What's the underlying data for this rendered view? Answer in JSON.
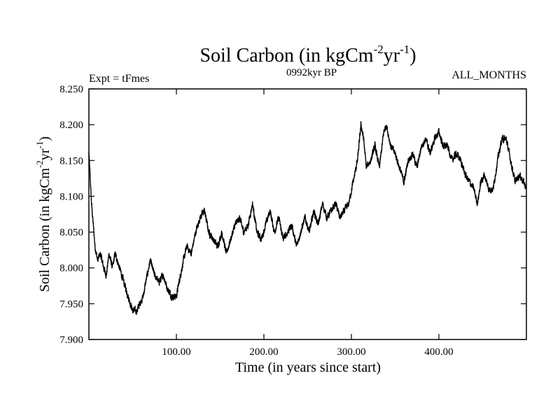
{
  "chart_data": {
    "type": "line",
    "title_main": "Soil Carbon (in kgCm",
    "title_sup1": "-2",
    "title_mid": "yr",
    "title_sup2": "-1",
    "title_end": ")",
    "subtitle_left": "Expt = tFmes",
    "subtitle_center": "0992kyr BP",
    "subtitle_right": "ALL_MONTHS",
    "xlabel": "Time (in years since start)",
    "ylabel_main": "Soil Carbon (in kgCm",
    "ylabel_sup1": "-2",
    "ylabel_mid": "yr",
    "ylabel_sup2": "-1",
    "ylabel_end": ")",
    "xlim": [
      0,
      500
    ],
    "ylim": [
      7.9,
      8.25
    ],
    "x_ticks": [
      100,
      200,
      300,
      400
    ],
    "x_tick_labels": [
      "100.00",
      "200.00",
      "300.00",
      "400.00"
    ],
    "y_ticks": [
      7.9,
      7.95,
      8.0,
      8.05,
      8.1,
      8.15,
      8.2,
      8.25
    ],
    "y_tick_labels": [
      "7.900",
      "7.950",
      "8.000",
      "8.050",
      "8.100",
      "8.150",
      "8.200",
      "8.250"
    ],
    "line_color": "#000000",
    "series": [
      {
        "name": "Soil Carbon",
        "anchors_x": [
          0,
          3,
          7,
          10,
          13,
          17,
          20,
          23,
          27,
          30,
          35,
          40,
          45,
          50,
          55,
          58,
          62,
          65,
          70,
          75,
          80,
          85,
          90,
          95,
          100,
          103,
          108,
          112,
          117,
          122,
          127,
          132,
          137,
          142,
          147,
          152,
          157,
          162,
          167,
          172,
          177,
          182,
          187,
          192,
          197,
          202,
          207,
          212,
          217,
          222,
          227,
          232,
          237,
          242,
          247,
          252,
          257,
          262,
          267,
          272,
          277,
          282,
          287,
          292,
          297,
          302,
          307,
          311,
          314,
          317,
          322,
          327,
          332,
          337,
          340,
          345,
          350,
          355,
          360,
          365,
          370,
          375,
          380,
          385,
          390,
          395,
          400,
          405,
          410,
          415,
          420,
          425,
          430,
          435,
          440,
          444,
          448,
          452,
          457,
          462,
          467,
          472,
          477,
          482,
          487,
          492,
          497,
          500
        ],
        "anchors_y": [
          8.16,
          8.09,
          8.03,
          8.01,
          8.02,
          8.0,
          7.99,
          8.02,
          8.0,
          8.02,
          8.0,
          7.98,
          7.96,
          7.94,
          7.94,
          7.95,
          7.96,
          7.98,
          8.01,
          7.99,
          7.98,
          7.99,
          7.97,
          7.96,
          7.96,
          7.98,
          8.01,
          8.03,
          8.02,
          8.05,
          8.07,
          8.08,
          8.05,
          8.04,
          8.03,
          8.05,
          8.02,
          8.04,
          8.06,
          8.07,
          8.05,
          8.06,
          8.09,
          8.05,
          8.04,
          8.06,
          8.08,
          8.05,
          8.07,
          8.04,
          8.05,
          8.06,
          8.03,
          8.05,
          8.07,
          8.05,
          8.08,
          8.06,
          8.09,
          8.07,
          8.08,
          8.09,
          8.07,
          8.08,
          8.09,
          8.12,
          8.15,
          8.2,
          8.18,
          8.14,
          8.15,
          8.17,
          8.14,
          8.19,
          8.2,
          8.17,
          8.16,
          8.14,
          8.12,
          8.15,
          8.16,
          8.14,
          8.17,
          8.18,
          8.16,
          8.18,
          8.19,
          8.17,
          8.17,
          8.15,
          8.16,
          8.15,
          8.13,
          8.12,
          8.11,
          8.09,
          8.12,
          8.13,
          8.11,
          8.11,
          8.15,
          8.18,
          8.18,
          8.15,
          8.12,
          8.13,
          8.12,
          8.11
        ],
        "noise_amplitude": 0.007
      }
    ]
  }
}
